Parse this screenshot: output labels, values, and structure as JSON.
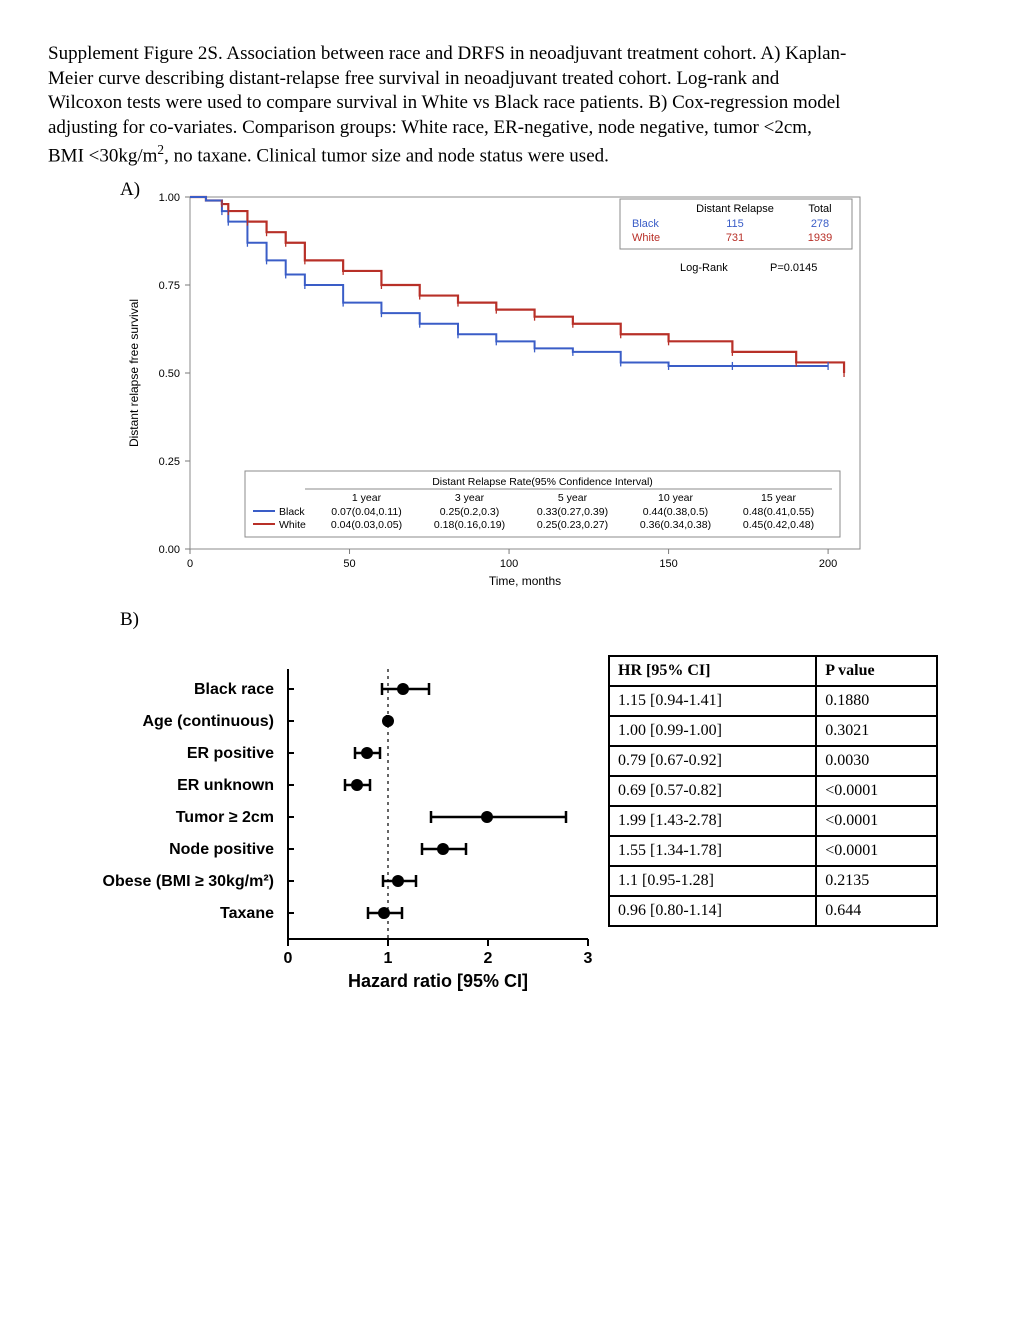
{
  "caption": {
    "line1": "Supplement Figure 2S. Association between race and DRFS in neoadjuvant treatment cohort. A) Kaplan-",
    "line2": "Meier curve describing distant-relapse free survival in neoadjuvant treated cohort. Log-rank and",
    "line3": "Wilcoxon tests were used to compare survival in White vs Black race patients. B) Cox-regression model",
    "line4": "adjusting for co-variates. Comparison groups: White race, ER-negative, node negative, tumor <2cm,",
    "line5_pre": "BMI <30kg/m",
    "line5_post": ", no taxane. Clinical tumor size and node status were used."
  },
  "panelA_label": "A)",
  "panelB_label": "B)",
  "km": {
    "xlabel": "Time, months",
    "ylabel": "Distant relapse free survival",
    "xlim": [
      0,
      210
    ],
    "ylim": [
      0,
      1
    ],
    "xticks": [
      0,
      50,
      100,
      150,
      200
    ],
    "yticks": [
      0.0,
      0.25,
      0.5,
      0.75,
      1.0
    ],
    "ytick_labels": [
      "0.00",
      "0.25",
      "0.50",
      "0.75",
      "1.00"
    ],
    "colors": {
      "black_line": "#3a5dc7",
      "white_line": "#b83028",
      "axis": "#7a7a7a",
      "frame": "#8b8b8b"
    },
    "legend": {
      "header_relapse": "Distant Relapse",
      "header_total": "Total",
      "rows": [
        {
          "label": "Black",
          "relapse": "115",
          "total": "278",
          "color": "#3a5dc7"
        },
        {
          "label": "White",
          "relapse": "731",
          "total": "1939",
          "color": "#b83028"
        }
      ]
    },
    "logrank_label": "Log-Rank",
    "logrank_p": "P=0.0145",
    "ci_table": {
      "title": "Distant Relapse Rate(95% Confidence Interval)",
      "cols": [
        "1 year",
        "3 year",
        "5 year",
        "10 year",
        "15 year"
      ],
      "rows": [
        {
          "label": "Black",
          "vals": [
            "0.07(0.04,0.11)",
            "0.25(0.2,0.3)",
            "0.33(0.27,0.39)",
            "0.44(0.38,0.5)",
            "0.48(0.41,0.55)"
          ],
          "color": "#3a5dc7"
        },
        {
          "label": "White",
          "vals": [
            "0.04(0.03,0.05)",
            "0.18(0.16,0.19)",
            "0.25(0.23,0.27)",
            "0.36(0.34,0.38)",
            "0.45(0.42,0.48)"
          ],
          "color": "#b83028"
        }
      ]
    },
    "series_black": [
      {
        "t": 0,
        "s": 1.0
      },
      {
        "t": 5,
        "s": 0.99
      },
      {
        "t": 10,
        "s": 0.96
      },
      {
        "t": 12,
        "s": 0.93
      },
      {
        "t": 18,
        "s": 0.87
      },
      {
        "t": 24,
        "s": 0.82
      },
      {
        "t": 30,
        "s": 0.78
      },
      {
        "t": 36,
        "s": 0.75
      },
      {
        "t": 48,
        "s": 0.7
      },
      {
        "t": 60,
        "s": 0.67
      },
      {
        "t": 72,
        "s": 0.64
      },
      {
        "t": 84,
        "s": 0.61
      },
      {
        "t": 96,
        "s": 0.59
      },
      {
        "t": 108,
        "s": 0.57
      },
      {
        "t": 120,
        "s": 0.56
      },
      {
        "t": 135,
        "s": 0.53
      },
      {
        "t": 150,
        "s": 0.52
      },
      {
        "t": 170,
        "s": 0.52
      },
      {
        "t": 200,
        "s": 0.52
      }
    ],
    "series_white": [
      {
        "t": 0,
        "s": 1.0
      },
      {
        "t": 5,
        "s": 0.99
      },
      {
        "t": 10,
        "s": 0.98
      },
      {
        "t": 12,
        "s": 0.96
      },
      {
        "t": 18,
        "s": 0.93
      },
      {
        "t": 24,
        "s": 0.9
      },
      {
        "t": 30,
        "s": 0.87
      },
      {
        "t": 36,
        "s": 0.82
      },
      {
        "t": 48,
        "s": 0.79
      },
      {
        "t": 60,
        "s": 0.75
      },
      {
        "t": 72,
        "s": 0.72
      },
      {
        "t": 84,
        "s": 0.7
      },
      {
        "t": 96,
        "s": 0.68
      },
      {
        "t": 108,
        "s": 0.66
      },
      {
        "t": 120,
        "s": 0.64
      },
      {
        "t": 135,
        "s": 0.61
      },
      {
        "t": 150,
        "s": 0.59
      },
      {
        "t": 170,
        "s": 0.56
      },
      {
        "t": 190,
        "s": 0.53
      },
      {
        "t": 205,
        "s": 0.5
      }
    ]
  },
  "forest": {
    "xlabel": "Hazard ratio [95% CI]",
    "xlim": [
      0,
      3
    ],
    "xticks": [
      0,
      1,
      2,
      3
    ],
    "ref_line": 1,
    "marker_color": "#000000",
    "rows": [
      {
        "label": "Black race",
        "hr": 1.15,
        "lo": 0.94,
        "hi": 1.41
      },
      {
        "label": "Age (continuous)",
        "hr": 1.0,
        "lo": 0.99,
        "hi": 1.0
      },
      {
        "label": "ER positive",
        "hr": 0.79,
        "lo": 0.67,
        "hi": 0.92
      },
      {
        "label": "ER unknown",
        "hr": 0.69,
        "lo": 0.57,
        "hi": 0.82
      },
      {
        "label": "Tumor ≥ 2cm",
        "hr": 1.99,
        "lo": 1.43,
        "hi": 2.78
      },
      {
        "label": "Node positive",
        "hr": 1.55,
        "lo": 1.34,
        "hi": 1.78
      },
      {
        "label": "Obese (BMI ≥ 30kg/m²)",
        "hr": 1.1,
        "lo": 0.95,
        "hi": 1.28
      },
      {
        "label": "Taxane",
        "hr": 0.96,
        "lo": 0.8,
        "hi": 1.14
      }
    ]
  },
  "hr_table": {
    "header_hr": "HR [95% CI]",
    "header_p": "P value",
    "rows": [
      {
        "hr": "1.15 [0.94-1.41]",
        "p": "0.1880"
      },
      {
        "hr": "1.00 [0.99-1.00]",
        "p": "0.3021"
      },
      {
        "hr": "0.79 [0.67-0.92]",
        "p": "0.0030"
      },
      {
        "hr": "0.69 [0.57-0.82]",
        "p": "<0.0001"
      },
      {
        "hr": "1.99 [1.43-2.78]",
        "p": "<0.0001"
      },
      {
        "hr": "1.55 [1.34-1.78]",
        "p": "<0.0001"
      },
      {
        "hr": "1.1 [0.95-1.28]",
        "p": "0.2135"
      },
      {
        "hr": "0.96 [0.80-1.14]",
        "p": "0.644"
      }
    ]
  }
}
